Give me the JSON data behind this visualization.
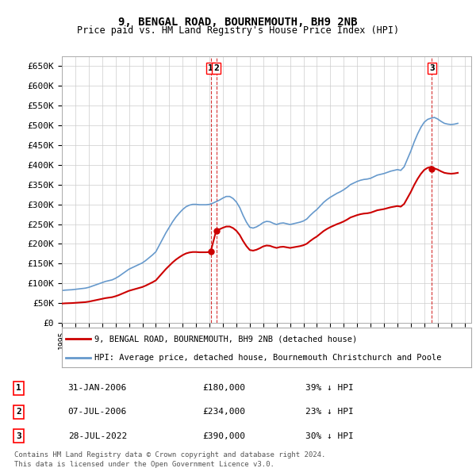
{
  "title": "9, BENGAL ROAD, BOURNEMOUTH, BH9 2NB",
  "subtitle": "Price paid vs. HM Land Registry's House Price Index (HPI)",
  "ylabel_ticks": [
    "£0",
    "£50K",
    "£100K",
    "£150K",
    "£200K",
    "£250K",
    "£300K",
    "£350K",
    "£400K",
    "£450K",
    "£500K",
    "£550K",
    "£600K",
    "£650K"
  ],
  "ytick_values": [
    0,
    50000,
    100000,
    150000,
    200000,
    250000,
    300000,
    350000,
    400000,
    450000,
    500000,
    550000,
    600000,
    650000
  ],
  "ylim": [
    0,
    675000
  ],
  "xlim_start": 1995.0,
  "xlim_end": 2025.5,
  "xtick_years": [
    1995,
    1996,
    1997,
    1998,
    1999,
    2000,
    2001,
    2002,
    2003,
    2004,
    2005,
    2006,
    2007,
    2008,
    2009,
    2010,
    2011,
    2012,
    2013,
    2014,
    2015,
    2016,
    2017,
    2018,
    2019,
    2020,
    2021,
    2022,
    2023,
    2024,
    2025
  ],
  "transactions": [
    {
      "date_x": 2006.083,
      "price": 180000,
      "label": "1",
      "date_str": "31-JAN-2006",
      "price_str": "£180,000",
      "hpi_str": "39% ↓ HPI"
    },
    {
      "date_x": 2006.5,
      "price": 234000,
      "label": "2",
      "date_str": "07-JUL-2006",
      "price_str": "£234,000",
      "hpi_str": "23% ↓ HPI"
    },
    {
      "date_x": 2022.57,
      "price": 390000,
      "label": "3",
      "date_str": "28-JUL-2022",
      "price_str": "£390,000",
      "hpi_str": "30% ↓ HPI"
    }
  ],
  "red_line_color": "#cc0000",
  "blue_line_color": "#6699cc",
  "grid_color": "#cccccc",
  "bg_color": "#ffffff",
  "plot_bg_color": "#ffffff",
  "legend_box_color": "#000000",
  "transaction_line_color": "#cc0000",
  "legend1": "9, BENGAL ROAD, BOURNEMOUTH, BH9 2NB (detached house)",
  "legend2": "HPI: Average price, detached house, Bournemouth Christchurch and Poole",
  "footer1": "Contains HM Land Registry data © Crown copyright and database right 2024.",
  "footer2": "This data is licensed under the Open Government Licence v3.0.",
  "hpi_data": {
    "years": [
      1995.0,
      1995.25,
      1995.5,
      1995.75,
      1996.0,
      1996.25,
      1996.5,
      1996.75,
      1997.0,
      1997.25,
      1997.5,
      1997.75,
      1998.0,
      1998.25,
      1998.5,
      1998.75,
      1999.0,
      1999.25,
      1999.5,
      1999.75,
      2000.0,
      2000.25,
      2000.5,
      2000.75,
      2001.0,
      2001.25,
      2001.5,
      2001.75,
      2002.0,
      2002.25,
      2002.5,
      2002.75,
      2003.0,
      2003.25,
      2003.5,
      2003.75,
      2004.0,
      2004.25,
      2004.5,
      2004.75,
      2005.0,
      2005.25,
      2005.5,
      2005.75,
      2006.0,
      2006.25,
      2006.5,
      2006.75,
      2007.0,
      2007.25,
      2007.5,
      2007.75,
      2008.0,
      2008.25,
      2008.5,
      2008.75,
      2009.0,
      2009.25,
      2009.5,
      2009.75,
      2010.0,
      2010.25,
      2010.5,
      2010.75,
      2011.0,
      2011.25,
      2011.5,
      2011.75,
      2012.0,
      2012.25,
      2012.5,
      2012.75,
      2013.0,
      2013.25,
      2013.5,
      2013.75,
      2014.0,
      2014.25,
      2014.5,
      2014.75,
      2015.0,
      2015.25,
      2015.5,
      2015.75,
      2016.0,
      2016.25,
      2016.5,
      2016.75,
      2017.0,
      2017.25,
      2017.5,
      2017.75,
      2018.0,
      2018.25,
      2018.5,
      2018.75,
      2019.0,
      2019.25,
      2019.5,
      2019.75,
      2020.0,
      2020.25,
      2020.5,
      2020.75,
      2021.0,
      2021.25,
      2021.5,
      2021.75,
      2022.0,
      2022.25,
      2022.5,
      2022.75,
      2023.0,
      2023.25,
      2023.5,
      2023.75,
      2024.0,
      2024.25,
      2024.5
    ],
    "values": [
      82000,
      83000,
      83500,
      84000,
      85000,
      86000,
      87000,
      88000,
      90000,
      93000,
      96000,
      99000,
      102000,
      105000,
      107000,
      109000,
      113000,
      118000,
      124000,
      130000,
      136000,
      140000,
      144000,
      148000,
      152000,
      158000,
      165000,
      172000,
      180000,
      196000,
      212000,
      228000,
      242000,
      256000,
      268000,
      278000,
      287000,
      294000,
      298000,
      300000,
      300000,
      299000,
      299000,
      299000,
      300000,
      303000,
      307000,
      311000,
      316000,
      320000,
      320000,
      315000,
      306000,
      292000,
      272000,
      255000,
      242000,
      240000,
      243000,
      248000,
      254000,
      257000,
      256000,
      252000,
      249000,
      252000,
      253000,
      251000,
      249000,
      251000,
      253000,
      255000,
      258000,
      263000,
      272000,
      280000,
      287000,
      296000,
      305000,
      312000,
      318000,
      323000,
      328000,
      332000,
      337000,
      343000,
      350000,
      354000,
      358000,
      361000,
      363000,
      364000,
      366000,
      370000,
      374000,
      376000,
      378000,
      381000,
      384000,
      386000,
      388000,
      386000,
      395000,
      415000,
      435000,
      458000,
      478000,
      495000,
      508000,
      515000,
      518000,
      520000,
      516000,
      510000,
      505000,
      503000,
      502000,
      503000,
      505000
    ]
  },
  "red_line_data": {
    "years": [
      1995.0,
      2006.083,
      2006.083,
      2006.5,
      2006.5,
      2022.57,
      2022.57,
      2024.5
    ],
    "values": [
      50000,
      50000,
      180000,
      180000,
      234000,
      234000,
      390000,
      390000
    ]
  }
}
